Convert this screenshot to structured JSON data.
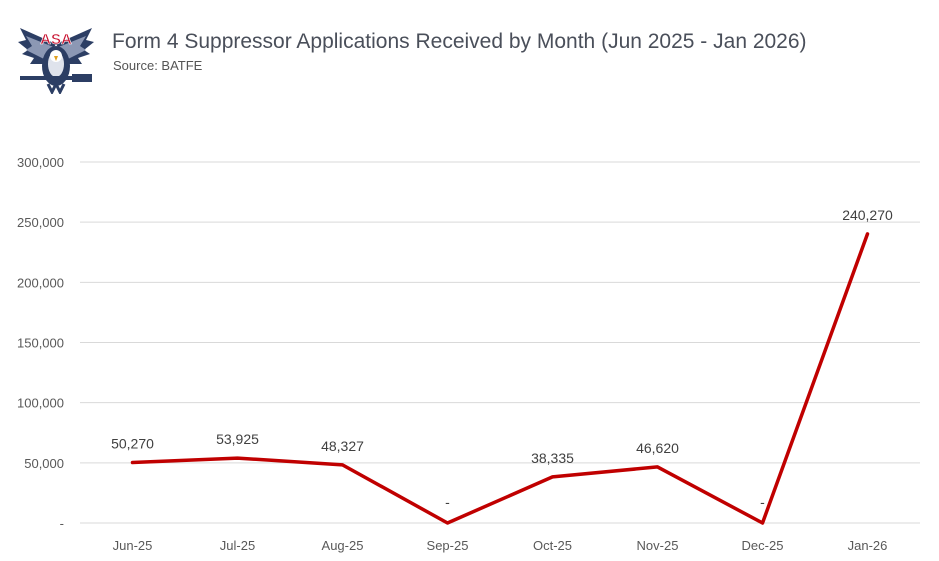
{
  "header": {
    "logo_text": "ASA",
    "title": "Form 4 Suppressor Applications Received by Month (Jun 2025 - Jan 2026)",
    "subtitle": "Source: BATFE"
  },
  "colors": {
    "series": "#c00000",
    "grid": "#d9d9d9",
    "logo_navy": "#2c3e64",
    "logo_red": "#c8102e"
  },
  "chart_data": {
    "type": "line",
    "title": "Form 4 Suppressor Applications Received by Month (Jun 2025 - Jan 2026)",
    "xlabel": "",
    "ylabel": "",
    "categories": [
      "Jun-25",
      "Jul-25",
      "Aug-25",
      "Sep-25",
      "Oct-25",
      "Nov-25",
      "Dec-25",
      "Jan-26"
    ],
    "series": [
      {
        "name": "",
        "values": [
          50270,
          53925,
          48327,
          0,
          38335,
          46620,
          0,
          240270
        ],
        "labels": [
          "50,270",
          "53,925",
          "48,327",
          "-",
          "38,335",
          "46,620",
          "-",
          "240,270"
        ]
      }
    ],
    "ylim": [
      0,
      300000
    ],
    "yticks": [
      0,
      50000,
      100000,
      150000,
      200000,
      250000,
      300000
    ],
    "ytick_labels": [
      "-",
      "50,000",
      "100,000",
      "150,000",
      "200,000",
      "250,000",
      "300,000"
    ],
    "grid": true,
    "legend": "none"
  }
}
